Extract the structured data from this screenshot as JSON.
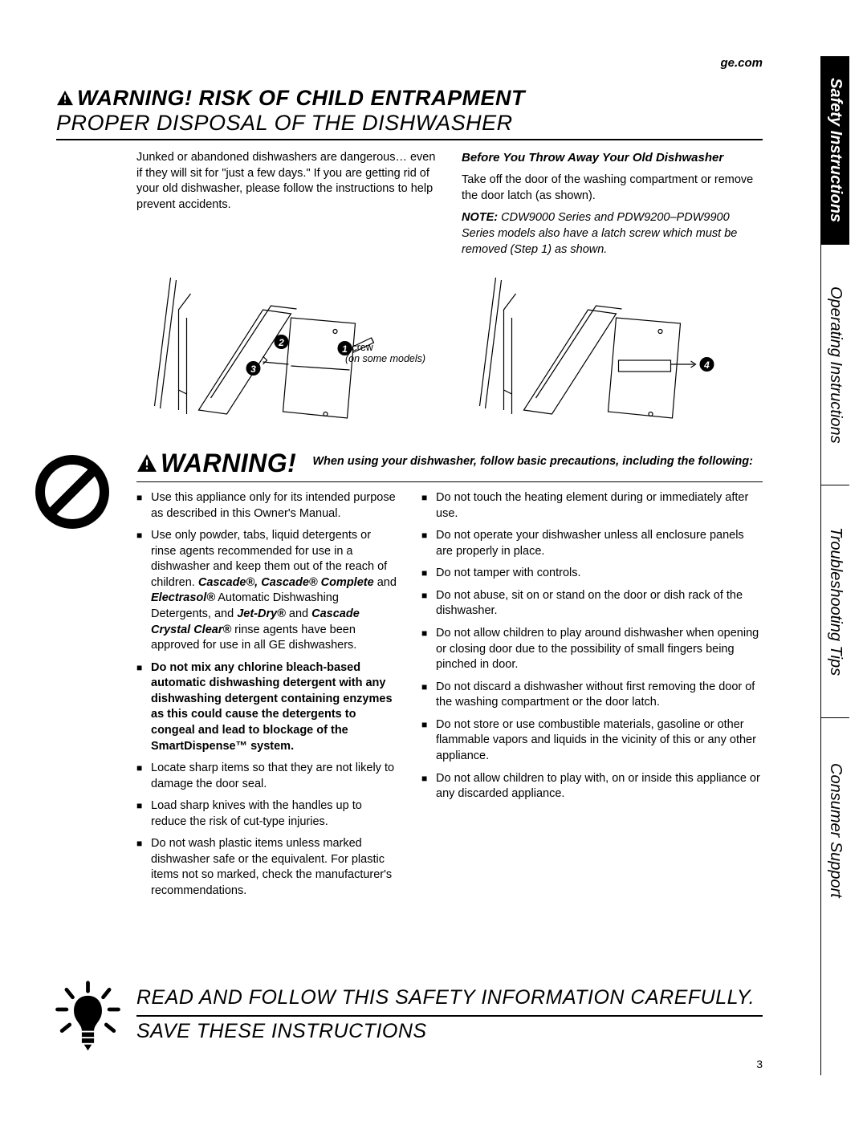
{
  "url": "ge.com",
  "header": {
    "warning_prefix": "WARNING!",
    "title_line1": "RISK OF CHILD ENTRAPMENT",
    "title_line2": "PROPER DISPOSAL OF THE DISHWASHER"
  },
  "intro": {
    "left_p": "Junked or abandoned dishwashers are dangerous… even if they will sit for \"just a few days.\" If you are getting rid of your old dishwasher, please follow the instructions to help prevent accidents.",
    "right_head": "Before You Throw Away Your Old Dishwasher",
    "right_p": "Take off the door of the washing compartment or remove the door latch (as shown).",
    "right_note_prefix": "NOTE:",
    "right_note": " CDW9000 Series and PDW9200–PDW9900 Series models also have a latch screw which must be removed (Step 1) as shown."
  },
  "diagram_labels": {
    "screw": "Screw",
    "screw_sub": "(on some models)",
    "callouts": [
      "1",
      "2",
      "3",
      "4"
    ]
  },
  "warning2": {
    "title": "WARNING!",
    "sub": "When using your dishwasher, follow basic precautions, including the following:"
  },
  "bullets_left": [
    {
      "text": "Use this appliance only for its intended purpose as described in this Owner's Manual."
    },
    {
      "html": "Use only powder, tabs, liquid detergents or rinse agents recommended for use in a dishwasher and keep them out of the reach of children. <b><i>Cascade®, Cascade® Complete</i></b> and <b><i>Electrasol®</i></b> Automatic Dishwashing Detergents, and <b><i>Jet-Dry®</i></b> and <b><i>Cascade Crystal Clear®</i></b> rinse agents have been approved for use in all GE dishwashers."
    },
    {
      "html": "<b>Do not mix any chlorine bleach-based automatic dishwashing detergent with any dishwashing detergent containing enzymes as this could cause the detergents to congeal and lead to blockage of the SmartDispense™ system.</b>"
    },
    {
      "text": "Locate sharp items so that they are not likely to damage the door seal."
    },
    {
      "text": "Load sharp knives with the handles up to reduce the risk of cut-type injuries."
    },
    {
      "text": "Do not wash plastic items unless marked dishwasher safe or the equivalent. For plastic items not so marked, check the manufacturer's recommendations."
    }
  ],
  "bullets_right": [
    {
      "text": "Do not touch the heating element during or immediately after use."
    },
    {
      "text": "Do not operate your dishwasher unless all enclosure panels are properly in place."
    },
    {
      "text": "Do not tamper with controls."
    },
    {
      "text": "Do not abuse, sit on or stand on the door or dish rack of the dishwasher."
    },
    {
      "text": "Do not allow children to play around dishwasher when opening or closing door due to the possibility of small fingers being pinched in door."
    },
    {
      "text": "Do not discard a dishwasher without first removing the door of the washing compartment or the door latch."
    },
    {
      "text": "Do not store or use combustible materials, gasoline or other flammable vapors and liquids in the vicinity of this or any other appliance."
    },
    {
      "text": "Do not allow children to play with, on or inside this appliance or any discarded appliance."
    }
  ],
  "bottom": {
    "line1": "READ AND FOLLOW THIS SAFETY INFORMATION CAREFULLY.",
    "line2": "SAVE THESE INSTRUCTIONS"
  },
  "page_number": "3",
  "tabs": {
    "t1": "Safety Instructions",
    "t2": "Operating Instructions",
    "t3": "Troubleshooting Tips",
    "t4": "Consumer Support"
  },
  "colors": {
    "black": "#000000",
    "white": "#ffffff"
  }
}
